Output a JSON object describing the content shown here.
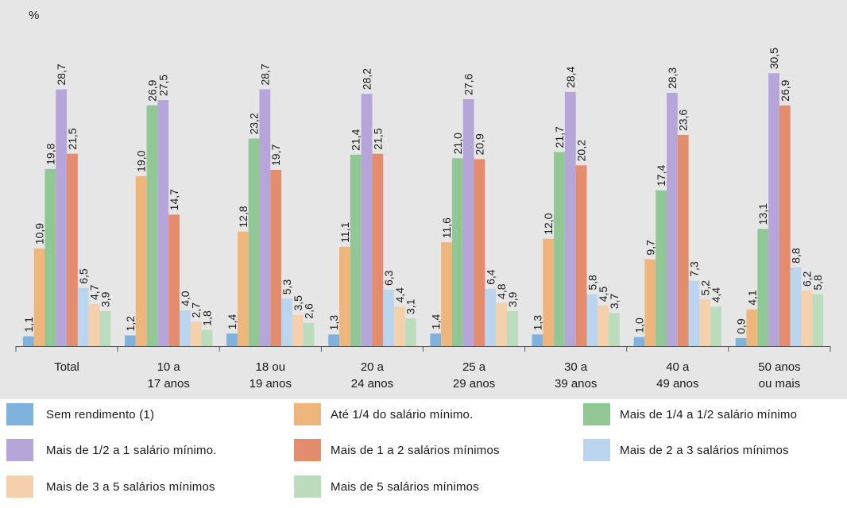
{
  "chart_data": {
    "type": "bar",
    "ylabel": "%",
    "ylim": [
      0,
      32
    ],
    "categories": [
      "Total",
      "10 a\n17 anos",
      "18 ou\n19 anos",
      "20 a\n24 anos",
      "25 a\n29 anos",
      "30 a\n39 anos",
      "40 a\n49 anos",
      "50 anos\nou mais"
    ],
    "series": [
      {
        "name": "Sem rendimento (1)",
        "color": "#7fb3de",
        "values": [
          1.1,
          1.2,
          1.4,
          1.3,
          1.4,
          1.3,
          1.0,
          0.9
        ],
        "labels": [
          "1,1",
          "1,2",
          "1,4",
          "1,3",
          "1,4",
          "1,3",
          "1,0",
          "0,9"
        ]
      },
      {
        "name": "Até 1/4 do salário mínimo.",
        "color": "#eeb57c",
        "values": [
          10.9,
          19.0,
          12.8,
          11.1,
          11.6,
          12.0,
          9.7,
          4.1
        ],
        "labels": [
          "10,9",
          "19,0",
          "12,8",
          "11,1",
          "11,6",
          "12,0",
          "9,7",
          "4,1"
        ]
      },
      {
        "name": "Mais de 1/4 a 1/2 salário mínimo",
        "color": "#90c794",
        "values": [
          19.8,
          26.9,
          23.2,
          21.4,
          21.0,
          21.7,
          17.4,
          13.1
        ],
        "labels": [
          "19,8",
          "26,9",
          "23,2",
          "21,4",
          "21,0",
          "21,7",
          "17,4",
          "13,1"
        ]
      },
      {
        "name": "Mais de 1/2 a 1 salário mínimo.",
        "color": "#b5a5d9",
        "values": [
          28.7,
          27.5,
          28.7,
          28.2,
          27.6,
          28.4,
          28.3,
          30.5
        ],
        "labels": [
          "28,7",
          "27,5",
          "28,7",
          "28,2",
          "27,6",
          "28,4",
          "28,3",
          "30,5"
        ]
      },
      {
        "name": "Mais de 1 a 2 salários mínimos",
        "color": "#e38c6e",
        "values": [
          21.5,
          14.7,
          19.7,
          21.5,
          20.9,
          20.2,
          23.6,
          26.9
        ],
        "labels": [
          "21,5",
          "14,7",
          "19,7",
          "21,5",
          "20,9",
          "20,2",
          "23,6",
          "26,9"
        ]
      },
      {
        "name": "Mais de 2 a 3 salários mínimos",
        "color": "#bcd5ef",
        "values": [
          6.5,
          4.0,
          5.3,
          6.3,
          6.4,
          5.8,
          7.3,
          8.8
        ],
        "labels": [
          "6,5",
          "4,0",
          "5,3",
          "6,3",
          "6,4",
          "5,8",
          "7,3",
          "8,8"
        ]
      },
      {
        "name": "Mais de 3 a 5 salários mínimos",
        "color": "#f5d0ac",
        "values": [
          4.7,
          2.7,
          3.5,
          4.4,
          4.8,
          4.5,
          5.2,
          6.2
        ],
        "labels": [
          "4,7",
          "2,7",
          "3,5",
          "4,4",
          "4,8",
          "4,5",
          "5,2",
          "6,2"
        ]
      },
      {
        "name": "Mais de 5 salários mínimos",
        "color": "#bcdcbe",
        "values": [
          3.9,
          1.8,
          2.6,
          3.1,
          3.9,
          3.7,
          4.4,
          5.8
        ],
        "labels": [
          "3,9",
          "1,8",
          "2,6",
          "3,1",
          "3,9",
          "3,7",
          "4,4",
          "5,8"
        ]
      }
    ],
    "grid": false,
    "legend_position": "bottom"
  }
}
